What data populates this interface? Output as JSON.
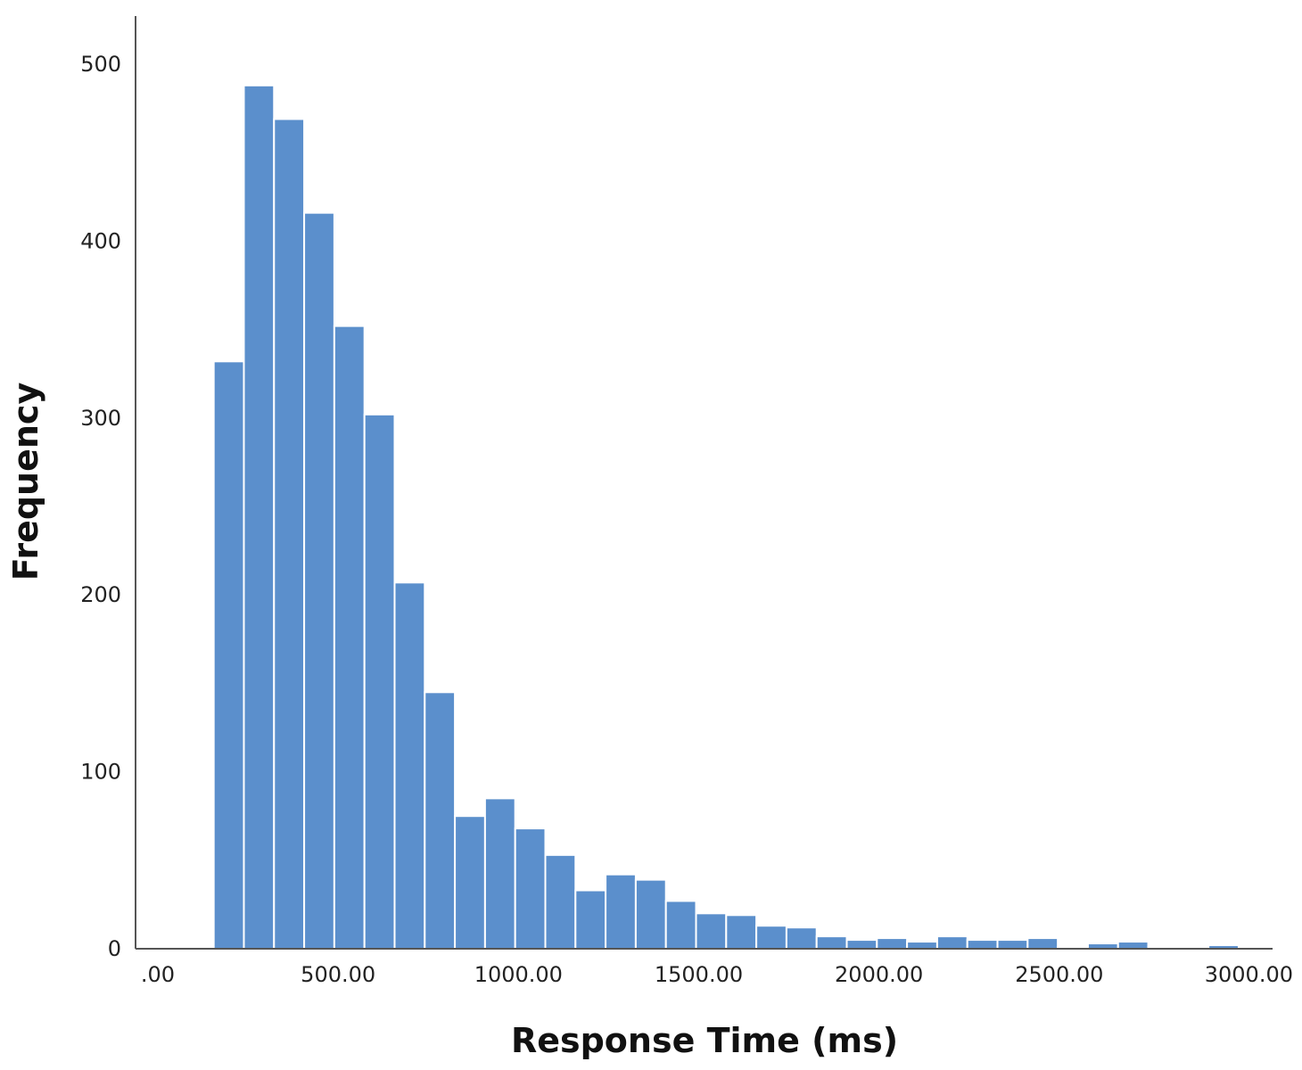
{
  "chart_data": {
    "type": "bar",
    "title": "",
    "xlabel": "Response Time (ms)",
    "ylabel": "Frequency",
    "xlim": [
      0,
      3000
    ],
    "ylim": [
      0,
      530
    ],
    "bin_width": 83.6,
    "bins": [
      {
        "x0": 155,
        "value": 332
      },
      {
        "x0": 238.6,
        "value": 488
      },
      {
        "x0": 322.2,
        "value": 469
      },
      {
        "x0": 405.8,
        "value": 416
      },
      {
        "x0": 489.4,
        "value": 352
      },
      {
        "x0": 573,
        "value": 302
      },
      {
        "x0": 656.6,
        "value": 207
      },
      {
        "x0": 740.2,
        "value": 145
      },
      {
        "x0": 823.8,
        "value": 75
      },
      {
        "x0": 907.4,
        "value": 85
      },
      {
        "x0": 991,
        "value": 68
      },
      {
        "x0": 1074.6,
        "value": 53
      },
      {
        "x0": 1158.2,
        "value": 33
      },
      {
        "x0": 1241.8,
        "value": 42
      },
      {
        "x0": 1325.4,
        "value": 39
      },
      {
        "x0": 1409,
        "value": 27
      },
      {
        "x0": 1492.6,
        "value": 20
      },
      {
        "x0": 1576.2,
        "value": 19
      },
      {
        "x0": 1659.8,
        "value": 13
      },
      {
        "x0": 1743.4,
        "value": 12
      },
      {
        "x0": 1827,
        "value": 7
      },
      {
        "x0": 1910.6,
        "value": 5
      },
      {
        "x0": 1994.2,
        "value": 6
      },
      {
        "x0": 2077.8,
        "value": 4
      },
      {
        "x0": 2161.4,
        "value": 7
      },
      {
        "x0": 2245,
        "value": 5
      },
      {
        "x0": 2328.6,
        "value": 5
      },
      {
        "x0": 2412.2,
        "value": 6
      },
      {
        "x0": 2495.8,
        "value": 1
      },
      {
        "x0": 2579.4,
        "value": 3
      },
      {
        "x0": 2663,
        "value": 4
      },
      {
        "x0": 2746.6,
        "value": 1
      },
      {
        "x0": 2830.2,
        "value": 0
      },
      {
        "x0": 2913.8,
        "value": 2
      }
    ],
    "x_ticks": [
      {
        "value": 0,
        "label": ".00"
      },
      {
        "value": 500,
        "label": "500.00"
      },
      {
        "value": 1000,
        "label": "1000.00"
      },
      {
        "value": 1500,
        "label": "1500.00"
      },
      {
        "value": 2000,
        "label": "2000.00"
      },
      {
        "value": 2500,
        "label": "2500.00"
      },
      {
        "value": 3000,
        "label": "3000.00"
      }
    ],
    "y_ticks": [
      {
        "value": 0,
        "label": "0"
      },
      {
        "value": 100,
        "label": "100"
      },
      {
        "value": 200,
        "label": "200"
      },
      {
        "value": 300,
        "label": "300"
      },
      {
        "value": 400,
        "label": "400"
      },
      {
        "value": 500,
        "label": "500"
      }
    ],
    "bar_color": "#5b8fcc",
    "grid": false,
    "legend": "none"
  }
}
